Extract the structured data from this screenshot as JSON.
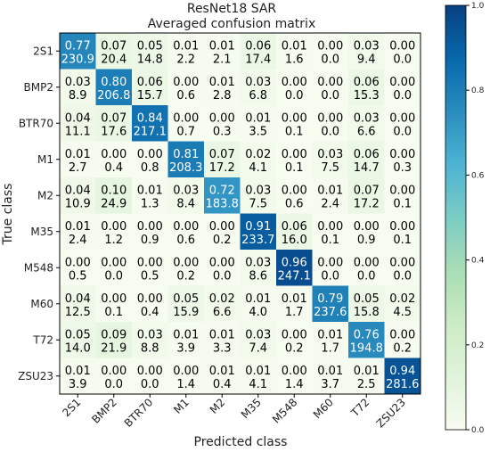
{
  "chart_data": {
    "type": "heatmap",
    "title": "ResNet18 SAR",
    "subtitle": "Averaged confusion matrix",
    "xlabel": "Predicted class",
    "ylabel": "True class",
    "classes": [
      "2S1",
      "BMP2",
      "BTR70",
      "M1",
      "M2",
      "M35",
      "M548",
      "M60",
      "T72",
      "ZSU23"
    ],
    "normalized": [
      [
        0.77,
        0.07,
        0.05,
        0.01,
        0.01,
        0.06,
        0.01,
        0.0,
        0.03,
        0.0
      ],
      [
        0.03,
        0.8,
        0.06,
        0.0,
        0.01,
        0.03,
        0.0,
        0.0,
        0.06,
        0.0
      ],
      [
        0.04,
        0.07,
        0.84,
        0.0,
        0.0,
        0.01,
        0.0,
        0.0,
        0.03,
        0.0
      ],
      [
        0.01,
        0.0,
        0.0,
        0.81,
        0.07,
        0.02,
        0.0,
        0.03,
        0.06,
        0.0
      ],
      [
        0.04,
        0.1,
        0.01,
        0.03,
        0.72,
        0.03,
        0.0,
        0.01,
        0.07,
        0.0
      ],
      [
        0.01,
        0.0,
        0.0,
        0.0,
        0.0,
        0.91,
        0.06,
        0.0,
        0.0,
        0.0
      ],
      [
        0.0,
        0.0,
        0.0,
        0.0,
        0.0,
        0.03,
        0.96,
        0.0,
        0.0,
        0.0
      ],
      [
        0.04,
        0.0,
        0.0,
        0.05,
        0.02,
        0.01,
        0.01,
        0.79,
        0.05,
        0.02
      ],
      [
        0.05,
        0.09,
        0.03,
        0.01,
        0.01,
        0.03,
        0.0,
        0.01,
        0.76,
        0.0
      ],
      [
        0.01,
        0.0,
        0.0,
        0.0,
        0.01,
        0.01,
        0.0,
        0.01,
        0.01,
        0.94
      ]
    ],
    "counts": [
      [
        230.9,
        20.4,
        14.8,
        2.2,
        2.1,
        17.4,
        1.6,
        0.0,
        9.4,
        0.0
      ],
      [
        8.9,
        206.8,
        15.7,
        0.6,
        2.8,
        6.8,
        0.0,
        0.0,
        15.3,
        0.0
      ],
      [
        11.1,
        17.6,
        217.1,
        0.7,
        0.3,
        3.5,
        0.1,
        0.0,
        6.6,
        0.0
      ],
      [
        2.7,
        0.4,
        0.8,
        208.3,
        17.2,
        4.1,
        0.1,
        7.5,
        14.7,
        0.3
      ],
      [
        10.9,
        24.9,
        1.3,
        8.4,
        183.8,
        7.5,
        0.6,
        2.4,
        17.2,
        0.1
      ],
      [
        2.4,
        1.2,
        0.9,
        0.6,
        0.2,
        233.7,
        16.0,
        0.1,
        0.9,
        0.1
      ],
      [
        0.5,
        0.0,
        0.5,
        0.2,
        0.0,
        8.6,
        247.1,
        0.0,
        0.0,
        0.0
      ],
      [
        12.5,
        0.1,
        0.4,
        15.9,
        6.6,
        4.0,
        1.7,
        237.6,
        15.8,
        4.5
      ],
      [
        14.0,
        21.9,
        8.8,
        3.9,
        3.3,
        7.4,
        0.2,
        1.7,
        194.8,
        0.2
      ],
      [
        3.9,
        0.0,
        0.0,
        1.4,
        0.4,
        4.1,
        1.4,
        3.7,
        2.5,
        281.6
      ]
    ],
    "colorbar": {
      "range": [
        0.0,
        1.0
      ],
      "ticks": [
        "0.0",
        "0.2",
        "0.4",
        "0.6",
        "0.8",
        "1.0"
      ],
      "colormap": [
        "#f7fcf0",
        "#e0f3db",
        "#ccebc5",
        "#a8ddb5",
        "#7bccc4",
        "#4eb3d3",
        "#2b8cbe",
        "#0868ac",
        "#084081"
      ]
    },
    "grid": false,
    "legend": "colorbar-right"
  }
}
